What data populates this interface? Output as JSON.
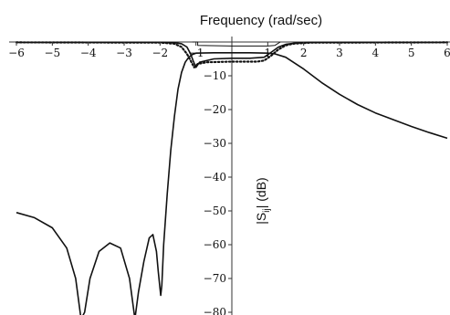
{
  "chart_data": {
    "type": "line",
    "xlabel": "Frequency (rad/sec)",
    "ylabel_main": "|S",
    "ylabel_sub": "ij",
    "ylabel_end": "| (dB)",
    "xlim": [
      -6,
      6
    ],
    "ylim": [
      -82,
      1
    ],
    "x_ticks": [
      -6,
      -5,
      -4,
      -3,
      -2,
      -1,
      1,
      2,
      3,
      4,
      5,
      6
    ],
    "x_tick_labels": [
      "−6",
      "−5",
      "−4",
      "−3",
      "−2",
      "−1",
      "1",
      "2",
      "3",
      "4",
      "5",
      "6"
    ],
    "y_ticks": [
      -10,
      -20,
      -30,
      -40,
      -50,
      -60,
      -70,
      -80
    ],
    "y_tick_labels": [
      "−10",
      "−20",
      "−30",
      "−40",
      "−50",
      "−60",
      "−70",
      "−80"
    ],
    "series": [
      {
        "style": "solid",
        "points": [
          [
            -6,
            -50.5
          ],
          [
            -5.5,
            -52
          ],
          [
            -5,
            -55
          ],
          [
            -4.6,
            -61
          ],
          [
            -4.35,
            -70
          ],
          [
            -4.2,
            -82
          ],
          [
            -4.1,
            -80
          ],
          [
            -3.95,
            -70
          ],
          [
            -3.7,
            -62
          ],
          [
            -3.4,
            -59.5
          ],
          [
            -3.1,
            -61
          ],
          [
            -2.85,
            -70
          ],
          [
            -2.7,
            -82
          ],
          [
            -2.6,
            -74
          ],
          [
            -2.45,
            -65
          ],
          [
            -2.3,
            -58
          ],
          [
            -2.2,
            -57
          ],
          [
            -2.1,
            -62
          ],
          [
            -2.05,
            -68
          ],
          [
            -2.0,
            -73
          ],
          [
            -1.98,
            -75
          ],
          [
            -1.95,
            -72
          ],
          [
            -1.9,
            -60
          ],
          [
            -1.8,
            -45
          ],
          [
            -1.7,
            -32
          ],
          [
            -1.6,
            -22
          ],
          [
            -1.5,
            -14
          ],
          [
            -1.4,
            -9
          ],
          [
            -1.3,
            -6
          ],
          [
            -1.2,
            -4.5
          ],
          [
            -1.1,
            -3.7
          ],
          [
            -1.0,
            -3.3
          ],
          [
            -0.5,
            -3.2
          ],
          [
            0,
            -3.2
          ],
          [
            0.5,
            -3.2
          ],
          [
            1.0,
            -3.3
          ],
          [
            1.2,
            -3.5
          ],
          [
            1.5,
            -4.5
          ],
          [
            2.0,
            -8
          ],
          [
            2.5,
            -12
          ],
          [
            3.0,
            -15.5
          ],
          [
            3.5,
            -18.5
          ],
          [
            4.0,
            -21
          ],
          [
            4.5,
            -23
          ],
          [
            5.0,
            -25
          ],
          [
            5.5,
            -26.8
          ],
          [
            6.0,
            -28.5
          ]
        ]
      },
      {
        "style": "solid",
        "points": [
          [
            -6,
            -0.1
          ],
          [
            -2,
            -0.1
          ],
          [
            -1.6,
            -0.2
          ],
          [
            -1.4,
            -0.5
          ],
          [
            -1.25,
            -1.5
          ],
          [
            -1.15,
            -3.5
          ],
          [
            -1.08,
            -5.5
          ],
          [
            -1.0,
            -7.5
          ],
          [
            -0.9,
            -6.0
          ],
          [
            -0.5,
            -5.0
          ],
          [
            0,
            -4.8
          ],
          [
            0.5,
            -4.8
          ],
          [
            0.9,
            -4.5
          ],
          [
            1.1,
            -3.0
          ],
          [
            1.3,
            -1.5
          ],
          [
            1.5,
            -0.7
          ],
          [
            1.8,
            -0.3
          ],
          [
            2.2,
            -0.1
          ],
          [
            6,
            -0.1
          ]
        ]
      },
      {
        "style": "dotted",
        "points": [
          [
            -6,
            -0.1
          ],
          [
            -2,
            -0.2
          ],
          [
            -1.6,
            -0.5
          ],
          [
            -1.4,
            -1.5
          ],
          [
            -1.25,
            -3.5
          ],
          [
            -1.15,
            -5.5
          ],
          [
            -1.05,
            -7.5
          ],
          [
            -0.95,
            -6.5
          ],
          [
            -0.7,
            -6.0
          ],
          [
            0,
            -5.8
          ],
          [
            0.7,
            -5.8
          ],
          [
            0.9,
            -5.5
          ],
          [
            1.1,
            -4.0
          ],
          [
            1.3,
            -2.2
          ],
          [
            1.5,
            -1.0
          ],
          [
            1.7,
            -0.5
          ],
          [
            2.2,
            -0.2
          ],
          [
            6,
            -0.1
          ]
        ]
      },
      {
        "style": "thin",
        "points": [
          [
            -1.1,
            0
          ],
          [
            -0.95,
            0
          ],
          [
            -0.95,
            -1
          ],
          [
            0,
            -1.2
          ],
          [
            1.0,
            -1.2
          ],
          [
            1.2,
            -1.0
          ],
          [
            1.35,
            0
          ]
        ]
      }
    ]
  }
}
